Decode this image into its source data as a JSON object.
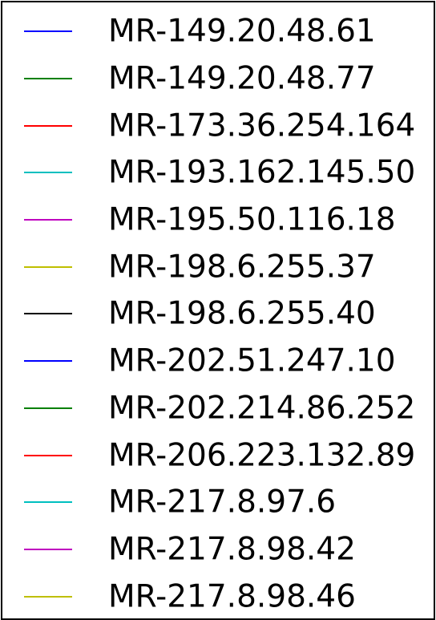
{
  "chart_data": {
    "type": "line",
    "legend_placement": "full-frame",
    "series": [
      {
        "name": "MR-149.20.48.61",
        "color": "#0000ff"
      },
      {
        "name": "MR-149.20.48.77",
        "color": "#008000"
      },
      {
        "name": "MR-173.36.254.164",
        "color": "#ff0000"
      },
      {
        "name": "MR-193.162.145.50",
        "color": "#00bfbf"
      },
      {
        "name": "MR-195.50.116.18",
        "color": "#bf00bf"
      },
      {
        "name": "MR-198.6.255.37",
        "color": "#bfbf00"
      },
      {
        "name": "MR-198.6.255.40",
        "color": "#000000"
      },
      {
        "name": "MR-202.51.247.10",
        "color": "#0000ff"
      },
      {
        "name": "MR-202.214.86.252",
        "color": "#008000"
      },
      {
        "name": "MR-206.223.132.89",
        "color": "#ff0000"
      },
      {
        "name": "MR-217.8.97.6",
        "color": "#00bfbf"
      },
      {
        "name": "MR-217.8.98.42",
        "color": "#bf00bf"
      },
      {
        "name": "MR-217.8.98.46",
        "color": "#bfbf00"
      }
    ]
  }
}
